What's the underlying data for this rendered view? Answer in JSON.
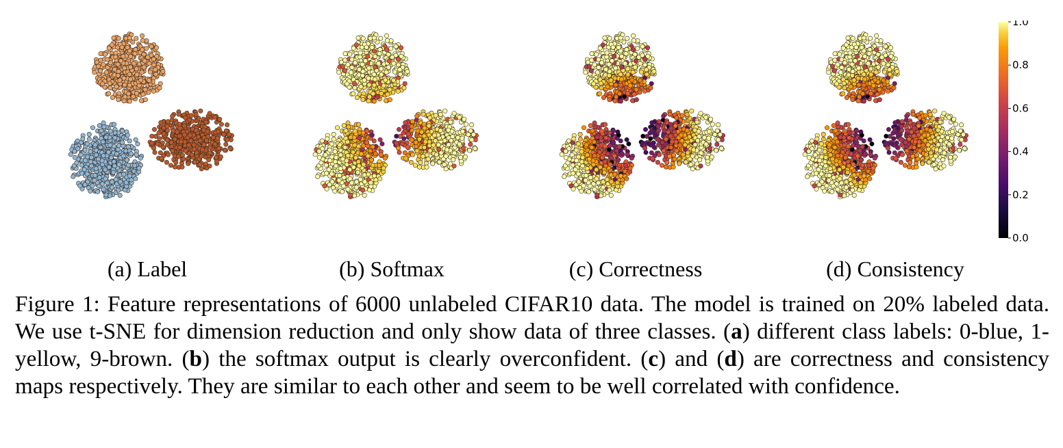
{
  "chart_data": [
    {
      "type": "scatter",
      "title": "(a) Label",
      "color_mode": "class",
      "classes": [
        {
          "name": "0",
          "color": "#8fb8d6"
        },
        {
          "name": "1",
          "color": "#e8a468"
        },
        {
          "name": "9",
          "color": "#b85a2c"
        }
      ]
    },
    {
      "type": "scatter",
      "title": "(b) Softmax",
      "color_mode": "value",
      "colormap": "inferno",
      "summary": "mostly near 1.0 (light yellow) with a band of lower values near cluster boundaries"
    },
    {
      "type": "scatter",
      "title": "(c) Correctness",
      "color_mode": "value",
      "colormap": "inferno",
      "summary": "lower values (dark) concentrated at the center where clusters meet"
    },
    {
      "type": "scatter",
      "title": "(d) Consistency",
      "color_mode": "value",
      "colormap": "inferno",
      "summary": "similar to correctness, dark purple core with yellow periphery"
    }
  ],
  "colorbar": {
    "ticks": [
      "0.0",
      "0.2",
      "0.4",
      "0.6",
      "0.8",
      "1.0"
    ],
    "range": [
      0,
      1
    ],
    "colormap": "inferno"
  },
  "subcaptions": {
    "a": "(a) Label",
    "b": "(b) Softmax",
    "c": "(c) Correctness",
    "d": "(d) Consistency"
  },
  "caption": {
    "prefix": "Figure 1: Feature representations of 6000 unlabeled CIFAR10 data. The model is trained on 20% labeled data. We use t-SNE for dimension reduction and only show data of three classes. (",
    "a_letter": "a",
    "after_a": ") different class labels: 0-blue, 1-yellow, 9-brown. (",
    "b_letter": "b",
    "after_b": ") the softmax output is clearly overconfident. (",
    "c_letter": "c",
    "after_c": ") and (",
    "d_letter": "d",
    "after_d": ") are correctness and consistency maps respectively. They are similar to each other and seem to be well correlated with confidence."
  }
}
